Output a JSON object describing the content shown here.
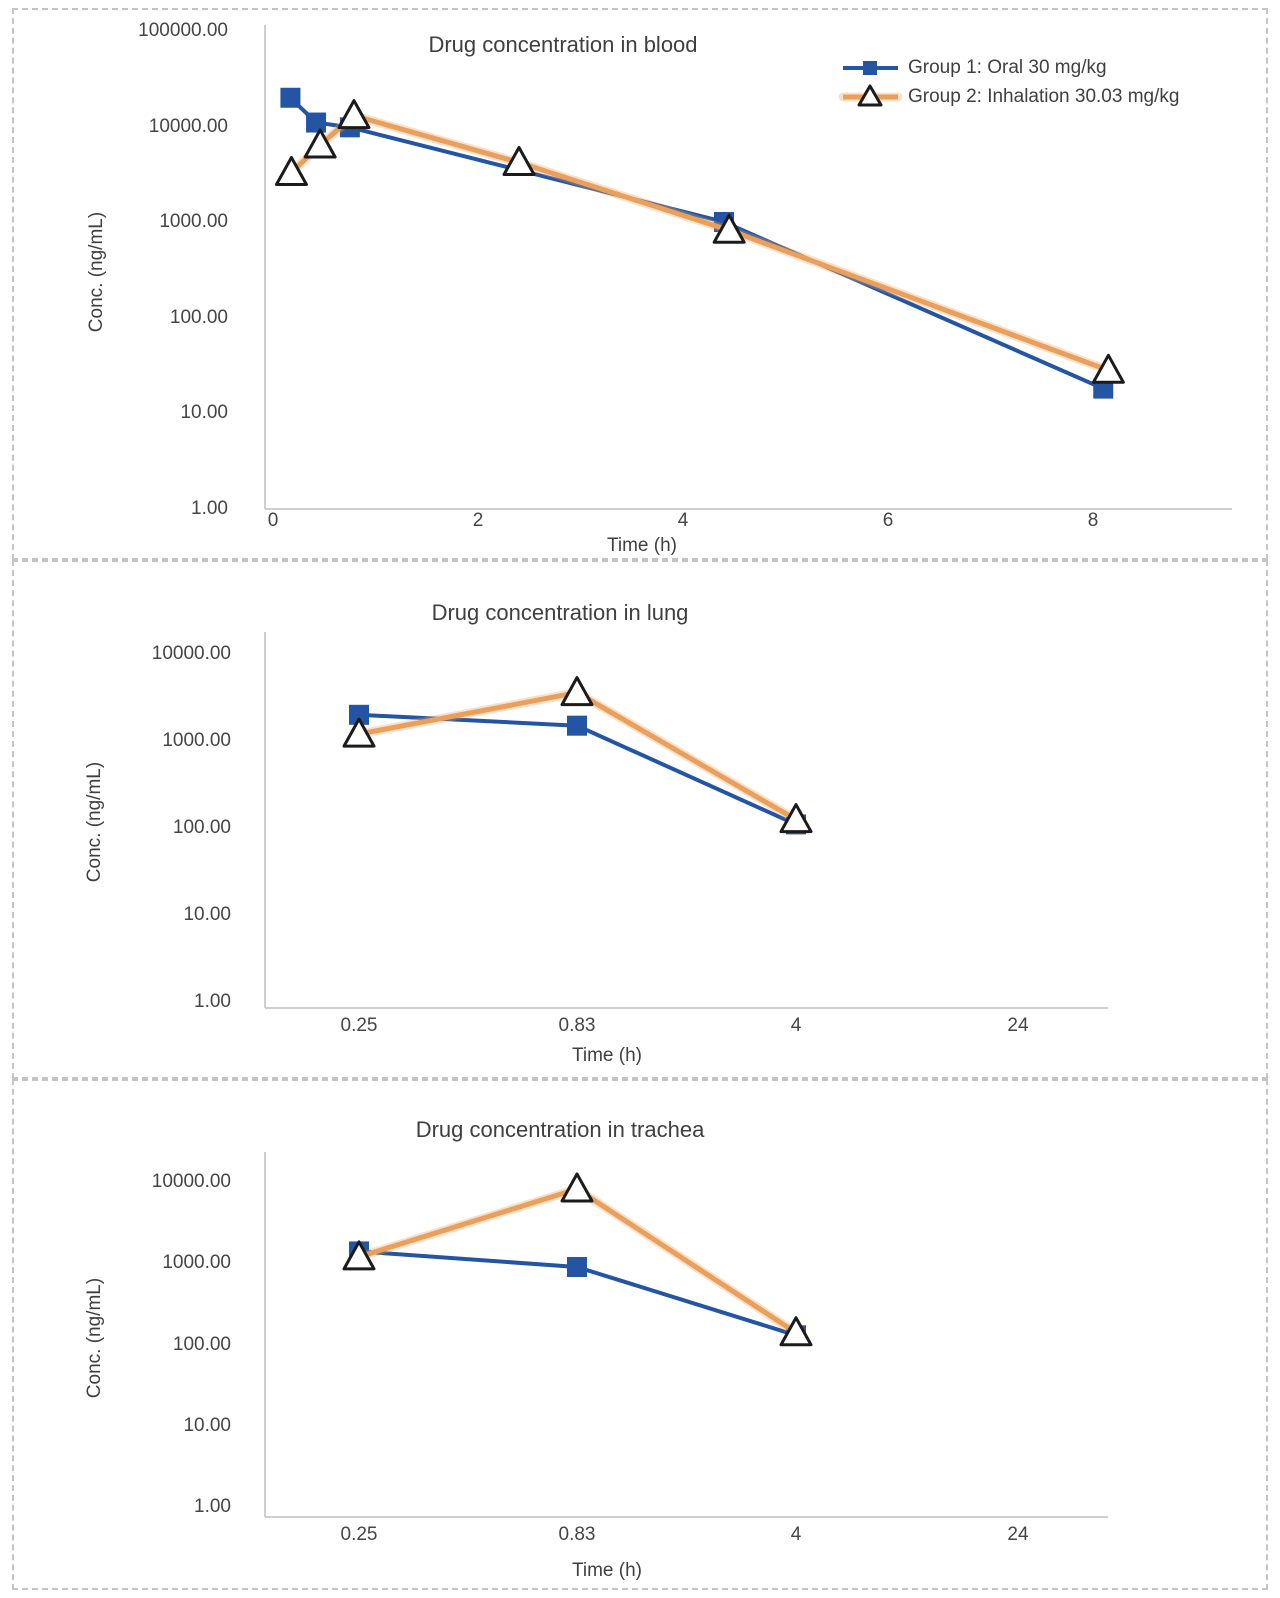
{
  "page": {
    "background": "#FFFFFF"
  },
  "colors": {
    "oral_blue": "#2355A4",
    "inhalation_orange": "#E9A05C",
    "triangle_outline": "#1B1B1B",
    "text": "#3F3F3F",
    "axis_line": "#BFBFBF",
    "panel_border": "#C4C4C4"
  },
  "legend": {
    "position": "top-right-of-blood-chart",
    "items": [
      {
        "label": "Group 1: Oral 30 mg/kg",
        "marker": "square-on-line",
        "color": "#2355A4"
      },
      {
        "label": "Group 2: Inhalation 30.03 mg/kg",
        "marker": "triangle-on-line",
        "color": "#E9A05C"
      }
    ]
  },
  "chart_data": [
    {
      "key": "blood",
      "type": "line",
      "title": "Drug concentration in blood",
      "xlabel": "Time (h)",
      "ylabel": "Conc. (ng/mL)",
      "y_scale": "log",
      "ylim": [
        1,
        100000
      ],
      "grid": false,
      "y_tick_labels": [
        "100000.00",
        "10000.00",
        "1000.00",
        "100.00",
        "10.00",
        "1.00"
      ],
      "x_tick_labels": [
        "0",
        "2",
        "4",
        "6",
        "8"
      ],
      "x_ticks": [
        0,
        2,
        4,
        6,
        8
      ],
      "series": [
        {
          "name": "Group 1: Oral 30 mg/kg",
          "marker": "square",
          "color": "#2355A4",
          "x": [
            0.17,
            0.42,
            0.75,
            4.4,
            8.1
          ],
          "y": [
            20000,
            11000,
            9800,
            1000,
            18
          ]
        },
        {
          "name": "Group 2: Inhalation 30.03 mg/kg",
          "marker": "triangle",
          "color": "#E9A05C",
          "x": [
            0.18,
            0.46,
            0.79,
            2.4,
            4.45,
            8.15
          ],
          "y": [
            3300,
            6400,
            13000,
            4200,
            820,
            28
          ]
        }
      ]
    },
    {
      "key": "lung",
      "type": "line",
      "title": "Drug concentration in lung",
      "xlabel": "Time (h)",
      "ylabel": "Conc. (ng/mL)",
      "y_scale": "log",
      "ylim": [
        1,
        10000
      ],
      "grid": false,
      "y_tick_labels": [
        "10000.00",
        "1000.00",
        "100.00",
        "10.00",
        "1.00"
      ],
      "x_tick_labels": [
        "0.25",
        "0.83",
        "4",
        "24"
      ],
      "x_categories": [
        "0.25",
        "0.83",
        "4",
        "24"
      ],
      "series": [
        {
          "name": "Group 1: Oral 30 mg/kg",
          "marker": "square",
          "color": "#2355A4",
          "x_category_index": [
            0,
            1,
            2
          ],
          "y": [
            2000,
            1500,
            110
          ]
        },
        {
          "name": "Group 2: Inhalation 30.03 mg/kg",
          "marker": "triangle",
          "color": "#E9A05C",
          "x_category_index": [
            0,
            1,
            2
          ],
          "y": [
            1200,
            3600,
            125
          ]
        }
      ]
    },
    {
      "key": "trachea",
      "type": "line",
      "title": "Drug concentration in trachea",
      "xlabel": "Time (h)",
      "ylabel": "Conc. (ng/mL)",
      "y_scale": "log",
      "ylim": [
        1,
        10000
      ],
      "grid": false,
      "y_tick_labels": [
        "10000.00",
        "1000.00",
        "100.00",
        "10.00",
        "1.00"
      ],
      "x_tick_labels": [
        "0.25",
        "0.83",
        "4",
        "24"
      ],
      "x_categories": [
        "0.25",
        "0.83",
        "4",
        "24"
      ],
      "series": [
        {
          "name": "Group 1: Oral 30 mg/kg",
          "marker": "square",
          "color": "#2355A4",
          "x_category_index": [
            0,
            1,
            2
          ],
          "y": [
            1400,
            900,
            130
          ]
        },
        {
          "name": "Group 2: Inhalation 30.03 mg/kg",
          "marker": "triangle",
          "color": "#E9A05C",
          "x_category_index": [
            0,
            1,
            2
          ],
          "y": [
            1200,
            8200,
            140
          ]
        }
      ]
    }
  ]
}
